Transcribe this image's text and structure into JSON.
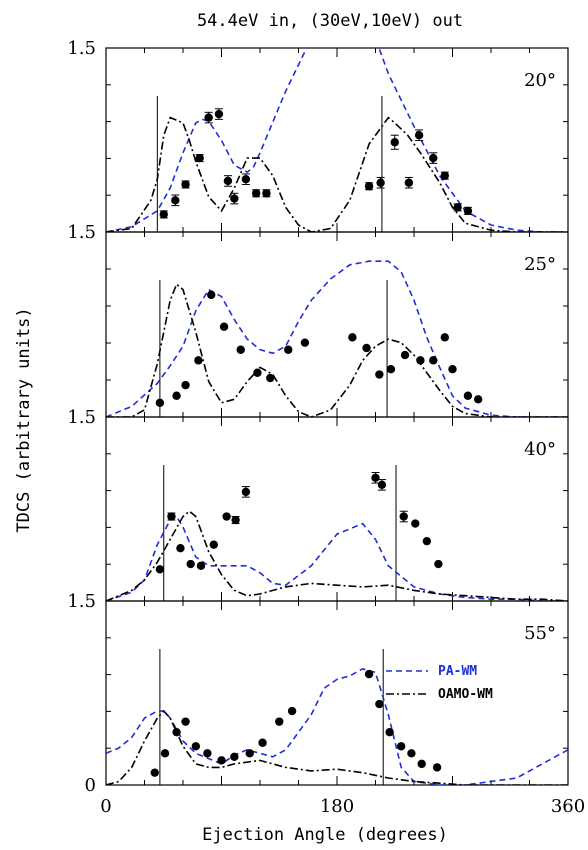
{
  "chart_data": {
    "type": "line",
    "title": "54.4eV in, (30eV,10eV) out",
    "xlabel": "Ejection Angle (degrees)",
    "ylabel": "TDCS (arbitrary units)",
    "xlim": [
      0,
      360
    ],
    "x_ticks": [
      "0",
      "180",
      "360"
    ],
    "legend": {
      "position": "right, bottom panel",
      "entries": [
        {
          "label": "PA-WM",
          "color": "#1f2fd6",
          "dash": "dashed"
        },
        {
          "label": "OAMO-WM",
          "color": "#000000",
          "dash": "dash-dot"
        }
      ]
    },
    "panels": [
      {
        "label": "20°",
        "y_tick_top": "1.5",
        "y_tick_bottom": "1.5",
        "vlines": [
          40,
          215
        ],
        "points": [
          [
            45,
            0.1
          ],
          [
            54,
            0.18
          ],
          [
            62,
            0.27
          ],
          [
            73,
            0.42
          ],
          [
            80,
            0.65
          ],
          [
            88,
            0.67
          ],
          [
            95,
            0.29
          ],
          [
            100,
            0.19
          ],
          [
            109,
            0.3
          ],
          [
            117,
            0.22
          ],
          [
            125,
            0.22
          ],
          [
            205,
            0.26
          ],
          [
            214,
            0.28
          ],
          [
            225,
            0.51
          ],
          [
            236,
            0.28
          ],
          [
            244,
            0.55
          ],
          [
            255,
            0.42
          ],
          [
            264,
            0.32
          ],
          [
            274,
            0.14
          ],
          [
            282,
            0.12
          ]
        ],
        "errors": [
          0.02,
          0.03,
          0.02,
          0.02,
          0.03,
          0.03,
          0.03,
          0.03,
          0.03,
          0.02,
          0.02,
          0.02,
          0.03,
          0.04,
          0.03,
          0.03,
          0.03,
          0.02,
          0.02,
          0.02
        ],
        "series": [
          {
            "name": "PA-WM",
            "x": [
              0,
              20,
              40,
              50,
              60,
              70,
              75,
              80,
              90,
              100,
              110,
              115,
              120,
              140,
              160,
              180,
              200,
              210,
              220,
              240,
              260,
              280,
              300,
              320,
              340,
              360
            ],
            "y": [
              0.0,
              0.03,
              0.12,
              0.25,
              0.45,
              0.62,
              0.64,
              0.63,
              0.52,
              0.38,
              0.34,
              0.37,
              0.45,
              0.8,
              1.1,
              1.3,
              1.3,
              1.1,
              0.9,
              0.6,
              0.32,
              0.12,
              0.04,
              0.01,
              0.0,
              0.0
            ]
          },
          {
            "name": "OAMO-WM",
            "x": [
              0,
              20,
              35,
              40,
              45,
              50,
              60,
              65,
              70,
              80,
              90,
              100,
              110,
              120,
              130,
              140,
              150,
              160,
              175,
              190,
              205,
              220,
              225,
              235,
              245,
              260,
              270,
              280,
              300,
              320,
              340,
              360
            ],
            "y": [
              0.0,
              0.02,
              0.18,
              0.3,
              0.55,
              0.65,
              0.62,
              0.52,
              0.4,
              0.2,
              0.12,
              0.25,
              0.42,
              0.42,
              0.32,
              0.14,
              0.04,
              0.0,
              0.02,
              0.18,
              0.5,
              0.65,
              0.62,
              0.55,
              0.45,
              0.28,
              0.14,
              0.05,
              0.01,
              0.0,
              0.0,
              0.0
            ]
          }
        ]
      },
      {
        "label": "25°",
        "y_tick_top": "",
        "y_tick_bottom": "1.5",
        "vlines": [
          42,
          219
        ],
        "points": [
          [
            42,
            0.08
          ],
          [
            55,
            0.12
          ],
          [
            62,
            0.18
          ],
          [
            72,
            0.32
          ],
          [
            82,
            0.69
          ],
          [
            92,
            0.51
          ],
          [
            105,
            0.38
          ],
          [
            118,
            0.25
          ],
          [
            128,
            0.22
          ],
          [
            142,
            0.38
          ],
          [
            155,
            0.42
          ],
          [
            192,
            0.45
          ],
          [
            203,
            0.39
          ],
          [
            213,
            0.24
          ],
          [
            222,
            0.27
          ],
          [
            233,
            0.35
          ],
          [
            245,
            0.32
          ],
          [
            255,
            0.32
          ],
          [
            264,
            0.45
          ],
          [
            270,
            0.27
          ],
          [
            282,
            0.12
          ],
          [
            290,
            0.1
          ]
        ],
        "series": [
          {
            "name": "PA-WM",
            "x": [
              0,
              20,
              40,
              50,
              60,
              70,
              80,
              90,
              100,
              110,
              120,
              130,
              140,
              150,
              160,
              175,
              190,
              205,
              220,
              230,
              240,
              250,
              260,
              270,
              280,
              300,
              320,
              340,
              360
            ],
            "y": [
              0.0,
              0.06,
              0.19,
              0.29,
              0.4,
              0.6,
              0.72,
              0.68,
              0.55,
              0.44,
              0.38,
              0.36,
              0.4,
              0.54,
              0.66,
              0.78,
              0.86,
              0.88,
              0.88,
              0.82,
              0.66,
              0.45,
              0.28,
              0.12,
              0.05,
              0.01,
              0.0,
              0.0,
              0.0
            ]
          },
          {
            "name": "OAMO-WM",
            "x": [
              0,
              20,
              30,
              40,
              50,
              55,
              60,
              65,
              70,
              80,
              90,
              100,
              110,
              120,
              130,
              140,
              150,
              160,
              175,
              190,
              200,
              210,
              220,
              230,
              240,
              250,
              260,
              270,
              280,
              300,
              320,
              340,
              360
            ],
            "y": [
              0.0,
              0.0,
              0.04,
              0.3,
              0.66,
              0.75,
              0.72,
              0.6,
              0.48,
              0.2,
              0.08,
              0.1,
              0.2,
              0.28,
              0.24,
              0.12,
              0.03,
              0.0,
              0.04,
              0.18,
              0.32,
              0.4,
              0.44,
              0.42,
              0.35,
              0.25,
              0.15,
              0.06,
              0.02,
              0.0,
              0.0,
              0.0,
              0.0
            ]
          }
        ]
      },
      {
        "label": "40°",
        "y_tick_top": "",
        "y_tick_bottom": "1.5",
        "vlines": [
          45,
          226
        ],
        "points": [
          [
            42,
            0.18
          ],
          [
            51,
            0.48
          ],
          [
            58,
            0.3
          ],
          [
            66,
            0.21
          ],
          [
            74,
            0.2
          ],
          [
            84,
            0.32
          ],
          [
            94,
            0.48
          ],
          [
            101,
            0.46
          ],
          [
            109,
            0.62
          ],
          [
            210,
            0.7
          ],
          [
            215,
            0.66
          ],
          [
            232,
            0.48
          ],
          [
            241,
            0.44
          ],
          [
            250,
            0.34
          ],
          [
            259,
            0.21
          ]
        ],
        "errors": [
          0,
          0.02,
          0,
          0,
          0,
          0,
          0,
          0.02,
          0.03,
          0.03,
          0.03,
          0.03,
          0,
          0,
          0
        ],
        "series": [
          {
            "name": "PA-WM",
            "x": [
              0,
              20,
              30,
              40,
              50,
              55,
              60,
              70,
              80,
              90,
              100,
              110,
              120,
              130,
              140,
              160,
              180,
              200,
              210,
              220,
              240,
              260,
              280,
              300,
              320,
              340,
              360
            ],
            "y": [
              0.0,
              0.05,
              0.12,
              0.32,
              0.46,
              0.48,
              0.42,
              0.25,
              0.2,
              0.2,
              0.2,
              0.2,
              0.16,
              0.1,
              0.09,
              0.2,
              0.38,
              0.44,
              0.35,
              0.2,
              0.08,
              0.04,
              0.02,
              0.01,
              0.01,
              0.0,
              0.0
            ]
          },
          {
            "name": "OAMO-WM",
            "x": [
              0,
              20,
              30,
              40,
              50,
              60,
              65,
              70,
              75,
              80,
              90,
              100,
              110,
              120,
              130,
              140,
              160,
              180,
              200,
              220,
              240,
              260,
              280,
              300,
              320,
              340,
              360
            ],
            "y": [
              0.0,
              0.06,
              0.12,
              0.22,
              0.35,
              0.48,
              0.51,
              0.48,
              0.38,
              0.28,
              0.15,
              0.06,
              0.03,
              0.04,
              0.06,
              0.08,
              0.1,
              0.09,
              0.08,
              0.09,
              0.06,
              0.04,
              0.03,
              0.02,
              0.01,
              0.01,
              0.0
            ]
          }
        ]
      },
      {
        "label": "55°",
        "y_tick_top": "",
        "y_tick_bottom": "0",
        "vlines": [
          42,
          216
        ],
        "points": [
          [
            38,
            0.07
          ],
          [
            46,
            0.18
          ],
          [
            55,
            0.3
          ],
          [
            62,
            0.36
          ],
          [
            70,
            0.22
          ],
          [
            79,
            0.18
          ],
          [
            90,
            0.14
          ],
          [
            100,
            0.16
          ],
          [
            112,
            0.18
          ],
          [
            122,
            0.24
          ],
          [
            135,
            0.36
          ],
          [
            145,
            0.42
          ],
          [
            205,
            0.63
          ],
          [
            213,
            0.46
          ],
          [
            221,
            0.3
          ],
          [
            230,
            0.22
          ],
          [
            238,
            0.18
          ],
          [
            246,
            0.12
          ],
          [
            258,
            0.1
          ]
        ],
        "series": [
          {
            "name": "PA-WM",
            "x": [
              0,
              10,
              20,
              30,
              40,
              45,
              50,
              60,
              70,
              80,
              90,
              100,
              110,
              120,
              130,
              140,
              150,
              160,
              170,
              180,
              190,
              200,
              210,
              220,
              230,
              240,
              250,
              260,
              280,
              300,
              320,
              340,
              360
            ],
            "y": [
              0.18,
              0.21,
              0.27,
              0.38,
              0.42,
              0.42,
              0.38,
              0.25,
              0.18,
              0.15,
              0.12,
              0.17,
              0.2,
              0.18,
              0.16,
              0.2,
              0.3,
              0.4,
              0.55,
              0.6,
              0.62,
              0.66,
              0.64,
              0.4,
              0.1,
              0.02,
              0.01,
              0.0,
              0.0,
              0.02,
              0.04,
              0.12,
              0.2
            ]
          },
          {
            "name": "OAMO-WM",
            "x": [
              0,
              10,
              20,
              30,
              40,
              45,
              50,
              60,
              70,
              80,
              90,
              100,
              120,
              140,
              160,
              180,
              200,
              220,
              240,
              260,
              280,
              300,
              320,
              340,
              360
            ],
            "y": [
              0.0,
              0.02,
              0.1,
              0.25,
              0.38,
              0.42,
              0.38,
              0.22,
              0.12,
              0.1,
              0.1,
              0.12,
              0.14,
              0.1,
              0.08,
              0.09,
              0.07,
              0.04,
              0.02,
              0.01,
              0.0,
              0.0,
              0.0,
              0.0,
              0.0
            ]
          }
        ]
      }
    ]
  }
}
